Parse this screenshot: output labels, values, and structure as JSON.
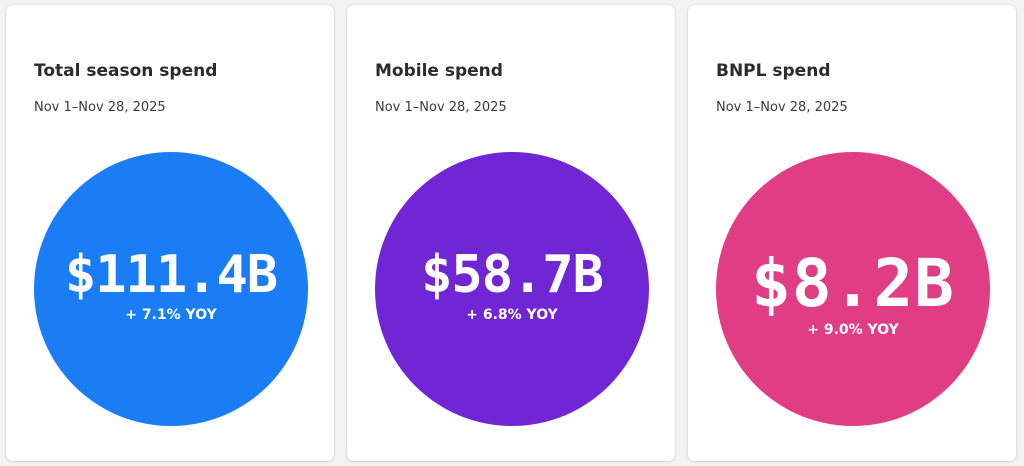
{
  "cards": [
    {
      "title": "Total season spend",
      "date_range": "Nov 1–Nov 28, 2025",
      "value": "$111.4B",
      "change": "+ 7.1% YOY",
      "yoy_percent": 7.1,
      "circle_color": "#1a7df4"
    },
    {
      "title": "Mobile spend",
      "date_range": "Nov 1–Nov 28, 2025",
      "value": "$58.7B",
      "change": "+ 6.8% YOY",
      "yoy_percent": 6.8,
      "circle_color": "#7126d6"
    },
    {
      "title": "BNPL spend",
      "date_range": "Nov 1–Nov 28, 2025",
      "value": "$8.2B",
      "change": "+ 9.0% YOY",
      "yoy_percent": 9.0,
      "circle_color": "#e03d84"
    }
  ]
}
